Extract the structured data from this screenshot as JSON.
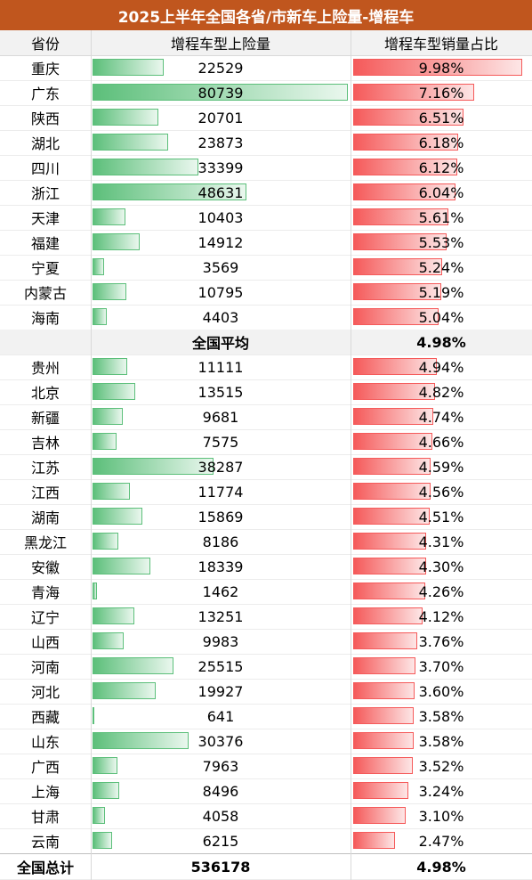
{
  "title": "2025上半年全国各省/市新车上险量-增程车",
  "headers": {
    "province": "省份",
    "volume": "增程车型上险量",
    "share": "增程车型销量占比"
  },
  "average": {
    "label": "全国平均",
    "share": "4.98%"
  },
  "total": {
    "label": "全国总计",
    "volume": "536178",
    "share": "4.98%"
  },
  "colors": {
    "title_bg": "#c0561e",
    "green_bar": "#5cbf7a",
    "red_bar": "#f55a5a"
  },
  "chart_data": {
    "type": "table",
    "columns": [
      "省份",
      "增程车型上险量",
      "增程车型销量占比"
    ],
    "volume_max": 80739,
    "share_max": 9.98,
    "rows_top": [
      {
        "province": "重庆",
        "volume": 22529,
        "share": "9.98%",
        "share_value": 9.98
      },
      {
        "province": "广东",
        "volume": 80739,
        "share": "7.16%",
        "share_value": 7.16
      },
      {
        "province": "陕西",
        "volume": 20701,
        "share": "6.51%",
        "share_value": 6.51
      },
      {
        "province": "湖北",
        "volume": 23873,
        "share": "6.18%",
        "share_value": 6.18
      },
      {
        "province": "四川",
        "volume": 33399,
        "share": "6.12%",
        "share_value": 6.12
      },
      {
        "province": "浙江",
        "volume": 48631,
        "share": "6.04%",
        "share_value": 6.04
      },
      {
        "province": "天津",
        "volume": 10403,
        "share": "5.61%",
        "share_value": 5.61
      },
      {
        "province": "福建",
        "volume": 14912,
        "share": "5.53%",
        "share_value": 5.53
      },
      {
        "province": "宁夏",
        "volume": 3569,
        "share": "5.24%",
        "share_value": 5.24
      },
      {
        "province": "内蒙古",
        "volume": 10795,
        "share": "5.19%",
        "share_value": 5.19
      },
      {
        "province": "海南",
        "volume": 4403,
        "share": "5.04%",
        "share_value": 5.04
      }
    ],
    "rows_bottom": [
      {
        "province": "贵州",
        "volume": 11111,
        "share": "4.94%",
        "share_value": 4.94
      },
      {
        "province": "北京",
        "volume": 13515,
        "share": "4.82%",
        "share_value": 4.82
      },
      {
        "province": "新疆",
        "volume": 9681,
        "share": "4.74%",
        "share_value": 4.74
      },
      {
        "province": "吉林",
        "volume": 7575,
        "share": "4.66%",
        "share_value": 4.66
      },
      {
        "province": "江苏",
        "volume": 38287,
        "share": "4.59%",
        "share_value": 4.59
      },
      {
        "province": "江西",
        "volume": 11774,
        "share": "4.56%",
        "share_value": 4.56
      },
      {
        "province": "湖南",
        "volume": 15869,
        "share": "4.51%",
        "share_value": 4.51
      },
      {
        "province": "黑龙江",
        "volume": 8186,
        "share": "4.31%",
        "share_value": 4.31
      },
      {
        "province": "安徽",
        "volume": 18339,
        "share": "4.30%",
        "share_value": 4.3
      },
      {
        "province": "青海",
        "volume": 1462,
        "share": "4.26%",
        "share_value": 4.26
      },
      {
        "province": "辽宁",
        "volume": 13251,
        "share": "4.12%",
        "share_value": 4.12
      },
      {
        "province": "山西",
        "volume": 9983,
        "share": "3.76%",
        "share_value": 3.76
      },
      {
        "province": "河南",
        "volume": 25515,
        "share": "3.70%",
        "share_value": 3.7
      },
      {
        "province": "河北",
        "volume": 19927,
        "share": "3.60%",
        "share_value": 3.6
      },
      {
        "province": "西藏",
        "volume": 641,
        "share": "3.58%",
        "share_value": 3.58
      },
      {
        "province": "山东",
        "volume": 30376,
        "share": "3.58%",
        "share_value": 3.58
      },
      {
        "province": "广西",
        "volume": 7963,
        "share": "3.52%",
        "share_value": 3.52
      },
      {
        "province": "上海",
        "volume": 8496,
        "share": "3.24%",
        "share_value": 3.24
      },
      {
        "province": "甘肃",
        "volume": 4058,
        "share": "3.10%",
        "share_value": 3.1
      },
      {
        "province": "云南",
        "volume": 6215,
        "share": "2.47%",
        "share_value": 2.47
      }
    ]
  }
}
